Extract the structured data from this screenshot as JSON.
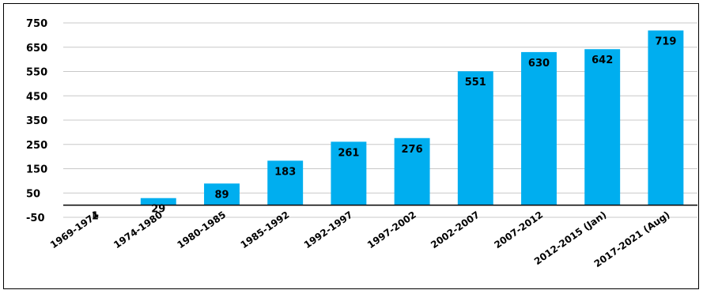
{
  "chart_data": {
    "type": "bar",
    "title": "",
    "xlabel": "",
    "ylabel": "",
    "categories": [
      "1969-1974",
      "1974-1980",
      "1980-1985",
      "1985-1992",
      "1992-1997",
      "1997-2002",
      "2002-2007",
      "2007-2012",
      "2012-2015 (Jan)",
      "2017-2021 (Aug)"
    ],
    "values": [
      1,
      29,
      89,
      183,
      261,
      276,
      551,
      630,
      642,
      719
    ],
    "yticks": [
      -50,
      50,
      150,
      250,
      350,
      450,
      550,
      650,
      750
    ],
    "ylim": [
      -50,
      750
    ],
    "bar_color": "#00AEEF",
    "grid": true,
    "legend": "none"
  }
}
